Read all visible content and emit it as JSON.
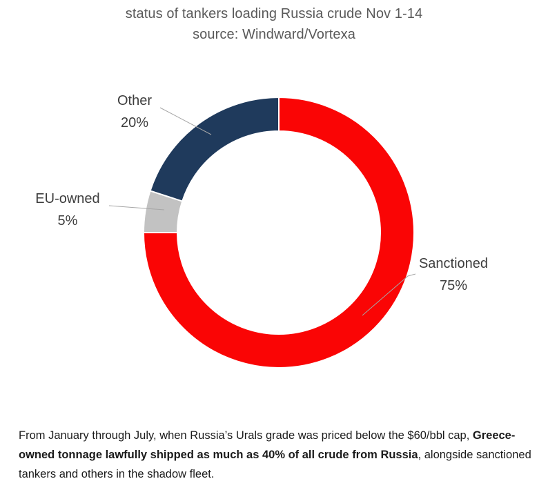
{
  "chart_data": {
    "type": "pie",
    "subtype": "donut",
    "title": "status of tankers loading Russia crude Nov 1-14",
    "subtitle": "source: Windward/Vortexa",
    "unit": "%",
    "direction": "clockwise",
    "start_angle_deg": 0,
    "inner_radius_ratio": 0.75,
    "legend_position": "none",
    "segments": [
      {
        "label": "Sanctioned",
        "value": 75,
        "pct_label": "75%",
        "color": "#fa0505"
      },
      {
        "label": "EU-owned",
        "value": 5,
        "pct_label": "5%",
        "color": "#c2c2c2"
      },
      {
        "label": "Other",
        "value": 20,
        "pct_label": "20%",
        "color": "#1f3a5c"
      }
    ],
    "colors": {
      "title_text": "#595959",
      "label_text": "#3d3d3d",
      "leader_line": "#a6a6a6",
      "segment_border": "#ffffff",
      "background": "#ffffff"
    }
  },
  "caption": {
    "pre": "From January through July, when Russia’s Urals grade was priced below the $60/bbl cap, ",
    "bold": "Greece-owned tonnage lawfully shipped as much as 40% of all crude from Russia",
    "post": ", alongside sanctioned tankers and others in the shadow fleet."
  }
}
